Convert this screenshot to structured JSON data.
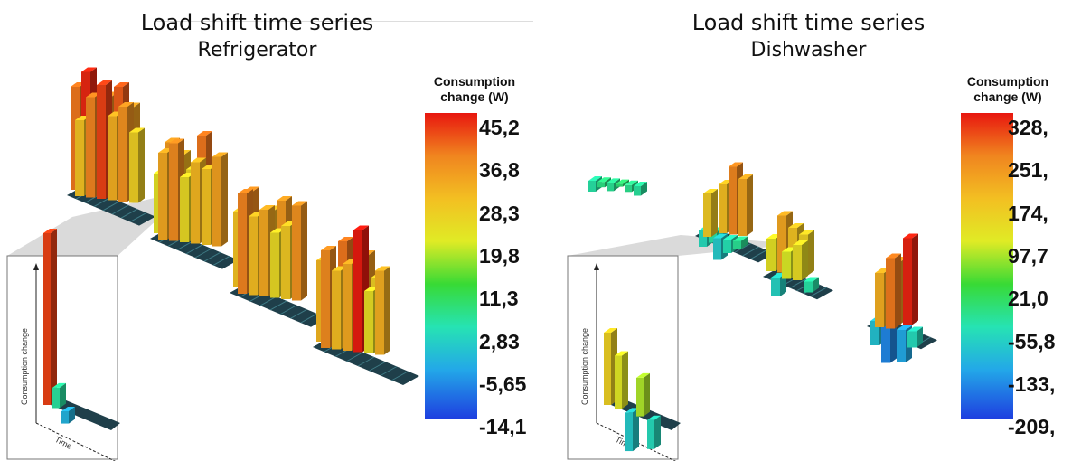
{
  "chart_data": [
    {
      "type": "bar",
      "title": "Load shift time series",
      "subtitle": "Refrigerator",
      "colorbar": {
        "title_line1": "Consumption",
        "title_line2": "change (W)",
        "ticks": [
          "45,2",
          "36,8",
          "28,3",
          "19,8",
          "11,3",
          "2,83",
          "-5,65",
          "-14,1"
        ],
        "range": [
          -14.1,
          45.2
        ]
      },
      "inset": {
        "ylabel": "Consumption change",
        "xlabel": "Time",
        "values": [
          42,
          5,
          -3
        ]
      },
      "blocks": [
        {
          "values": [
            38,
            44,
            30,
            36,
            40,
            33,
            28,
            37,
            42,
            31,
            35,
            26
          ]
        },
        {
          "values": [
            22,
            34,
            30,
            25,
            38,
            27,
            32,
            36,
            24,
            30,
            28,
            33
          ]
        },
        {
          "values": [
            28,
            36,
            22,
            30,
            34,
            25,
            37,
            29,
            32,
            24,
            27,
            35
          ]
        },
        {
          "values": [
            30,
            24,
            38,
            27,
            34,
            26,
            36,
            29,
            32,
            45,
            23,
            31
          ]
        }
      ]
    },
    {
      "type": "bar",
      "title": "Load shift time series",
      "subtitle": "Dishwasher",
      "colorbar": {
        "title_line1": "Consumption",
        "title_line2": "change (W)",
        "ticks": [
          "328,",
          "251,",
          "174,",
          "97,7",
          "21,0",
          "-55,8",
          "-133,",
          "-209,"
        ],
        "range": [
          -209,
          328
        ]
      },
      "inset": {
        "ylabel": "Consumption change",
        "xlabel": "Time",
        "values": [
          150,
          110,
          -80,
          80,
          -60
        ]
      },
      "blocks": [
        {
          "values": [
            -40,
            -20,
            -30,
            -10,
            -25,
            -35
          ]
        },
        {
          "values": [
            -60,
            -40,
            180,
            250,
            210,
            160,
            -80,
            -50,
            -30
          ]
        },
        {
          "values": [
            120,
            210,
            170,
            150,
            -70,
            100,
            130,
            -40
          ]
        },
        {
          "values": [
            -90,
            -150,
            230,
            320,
            200,
            260,
            -120,
            -60
          ]
        }
      ]
    }
  ]
}
